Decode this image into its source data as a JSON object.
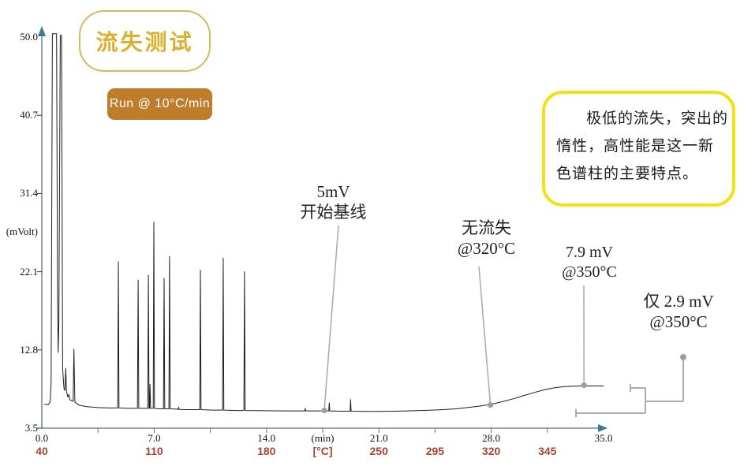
{
  "title": "流失测试",
  "run_label": "Run @ 10°C/min",
  "note": {
    "lines": [
      "极低的流失，突出的",
      "惰性，高性能是这一新",
      "色谱柱的主要特点。"
    ]
  },
  "annotations": {
    "start_baseline": {
      "line1": "5mV",
      "line2": "开始基线"
    },
    "no_bleed": {
      "line1": "无流失",
      "line2": "@320°C"
    },
    "bleed_79": {
      "line1": "7.9 mV",
      "line2": "@350°C"
    },
    "bleed_29": {
      "line1": "仅 2.9 mV",
      "line2": "@350°C"
    }
  },
  "colors": {
    "accent_gold": "#dcaf2e",
    "gold_border": "#d9b85c",
    "button_bg": "#be7d2b",
    "note_border": "#f2e114",
    "temp_label": "#a54432",
    "axis": "#5a7482",
    "arrow": "#3d7a94",
    "trace": "#1c1c1c",
    "leader": "#adadad",
    "bracket": "#ababab"
  },
  "chart_data": {
    "type": "line",
    "title": "流失测试 (bleed test chromatogram)",
    "grid": false,
    "legend": false,
    "y_axis": {
      "label": "(mVolt)",
      "range": [
        3.5,
        50.0
      ],
      "ticks": [
        3.5,
        12.8,
        22.1,
        31.4,
        40.7,
        50.0
      ],
      "tick_labels": [
        "3.5",
        "12.8",
        "22.1",
        "31.4",
        "40.7",
        "50.0"
      ]
    },
    "x_axis": {
      "label": "(min)",
      "unit_label": "(min)",
      "unit_position": 17.5,
      "range": [
        0,
        35
      ],
      "ticks": [
        0,
        7,
        14,
        21,
        28,
        35
      ],
      "tick_labels": [
        "0.0",
        "7.0",
        "14.0",
        "21.0",
        "28.0",
        "35.0"
      ],
      "minor_tick_step": 3.5
    },
    "x_axis_secondary": {
      "label": "[°C]",
      "unit_label": "[°C]",
      "unit_position": 17.5,
      "ticks": [
        0,
        7,
        14,
        21,
        24.5,
        28,
        31.5
      ],
      "tick_labels": [
        "40",
        "110",
        "180",
        "250",
        "295",
        "320",
        "345"
      ]
    },
    "series": [
      {
        "name": "bleed-test-trace",
        "points": [
          [
            0.15,
            6.35
          ],
          [
            0.4,
            6.3
          ],
          [
            0.52,
            6.6
          ],
          [
            0.58,
            9.0
          ],
          [
            0.66,
            50.4
          ],
          [
            0.92,
            50.4
          ],
          [
            0.98,
            20.0
          ],
          [
            1.02,
            12.5
          ],
          [
            1.06,
            16.0
          ],
          [
            1.15,
            50.2
          ],
          [
            1.23,
            50.2
          ],
          [
            1.3,
            10.5
          ],
          [
            1.38,
            8.2
          ],
          [
            1.44,
            8.0
          ],
          [
            1.49,
            10.6
          ],
          [
            1.54,
            7.8
          ],
          [
            1.62,
            7.2
          ],
          [
            1.68,
            7.5
          ],
          [
            1.74,
            6.9
          ],
          [
            1.82,
            6.8
          ],
          [
            1.95,
            6.7
          ],
          [
            2.0,
            12.9
          ],
          [
            2.06,
            6.6
          ],
          [
            2.3,
            6.25
          ],
          [
            2.8,
            6.05
          ],
          [
            3.5,
            5.95
          ],
          [
            4.3,
            5.9
          ],
          [
            4.73,
            5.9
          ],
          [
            4.77,
            23.3
          ],
          [
            4.81,
            5.9
          ],
          [
            5.4,
            5.85
          ],
          [
            5.96,
            5.85
          ],
          [
            6.0,
            21.1
          ],
          [
            6.04,
            5.85
          ],
          [
            6.3,
            5.85
          ],
          [
            6.6,
            5.85
          ],
          [
            6.64,
            21.7
          ],
          [
            6.68,
            5.85
          ],
          [
            6.71,
            5.85
          ],
          [
            6.74,
            8.7
          ],
          [
            6.78,
            5.85
          ],
          [
            6.94,
            5.85
          ],
          [
            6.98,
            28.0
          ],
          [
            7.02,
            5.85
          ],
          [
            7.3,
            5.8
          ],
          [
            7.58,
            5.8
          ],
          [
            7.62,
            21.3
          ],
          [
            7.66,
            5.8
          ],
          [
            7.92,
            5.8
          ],
          [
            7.96,
            23.9
          ],
          [
            8.0,
            5.8
          ],
          [
            8.5,
            5.75
          ],
          [
            8.53,
            6.0
          ],
          [
            8.56,
            5.72
          ],
          [
            9.0,
            5.7
          ],
          [
            9.84,
            5.7
          ],
          [
            9.88,
            22.3
          ],
          [
            9.92,
            5.7
          ],
          [
            10.6,
            5.65
          ],
          [
            11.26,
            5.65
          ],
          [
            11.3,
            23.7
          ],
          [
            11.34,
            5.65
          ],
          [
            12.1,
            5.6
          ],
          [
            12.59,
            5.6
          ],
          [
            12.63,
            22.1
          ],
          [
            12.67,
            5.6
          ],
          [
            13.4,
            5.58
          ],
          [
            14.5,
            5.56
          ],
          [
            15.5,
            5.55
          ],
          [
            16.38,
            5.55
          ],
          [
            16.41,
            5.85
          ],
          [
            16.44,
            5.55
          ],
          [
            17.2,
            5.55
          ],
          [
            17.88,
            5.55
          ],
          [
            17.91,
            6.5
          ],
          [
            17.94,
            5.55
          ],
          [
            18.6,
            5.52
          ],
          [
            19.21,
            5.52
          ],
          [
            19.24,
            6.9
          ],
          [
            19.27,
            5.52
          ],
          [
            20.0,
            5.5
          ],
          [
            21.0,
            5.5
          ],
          [
            22.0,
            5.52
          ],
          [
            23.0,
            5.56
          ],
          [
            24.0,
            5.62
          ],
          [
            25.0,
            5.7
          ],
          [
            25.8,
            5.8
          ],
          [
            26.5,
            5.95
          ],
          [
            27.2,
            6.1
          ],
          [
            27.9,
            6.3
          ],
          [
            28.6,
            6.6
          ],
          [
            29.3,
            6.95
          ],
          [
            30.0,
            7.35
          ],
          [
            30.7,
            7.75
          ],
          [
            31.4,
            8.1
          ],
          [
            32.0,
            8.32
          ],
          [
            32.6,
            8.45
          ],
          [
            33.2,
            8.5
          ],
          [
            34.0,
            8.52
          ],
          [
            35.0,
            8.52
          ]
        ]
      }
    ],
    "markers": [
      {
        "name": "start-baseline-point",
        "t": 17.6,
        "mv": 5.6,
        "label": "5mV 开始基线"
      },
      {
        "name": "no-bleed-point",
        "t": 27.95,
        "mv": 6.25,
        "label": "无流失 @320°C"
      },
      {
        "name": "bleed-7.9-point",
        "t": 33.78,
        "mv": 8.6,
        "label": "7.9 mV @350°C"
      }
    ],
    "annotations_values": {
      "baseline_level_mV": 5,
      "bleed_at_350C_mV": 7.9,
      "net_bleed_at_350C_mV": 2.9,
      "no_bleed_temperature_C": 320,
      "ramp_rate": "10°C/min"
    }
  }
}
